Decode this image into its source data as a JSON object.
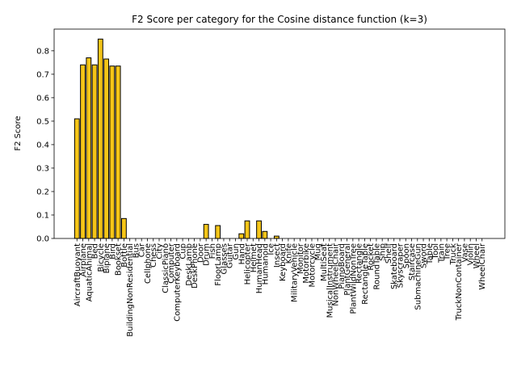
{
  "chart_data": {
    "type": "bar",
    "title": "F2 Score per category for the Cosine distance function (k=3)",
    "ylabel": "F2 Score",
    "color": "#f5c518",
    "edgecolor": "#000000",
    "categories": [
      "AircraftBuoyant",
      "Airplane",
      "AquaticAnimal",
      "Bed",
      "Bicycle",
      "Biplane",
      "Bird",
      "Bookset",
      "Bottle",
      "BuildingNonResidential",
      "Bus",
      "Car",
      "Cellphone",
      "Chess",
      "City",
      "ClassicPiano",
      "Computer",
      "ComputerKeyboard",
      "Cup",
      "DeskLamp",
      "DeskPhone",
      "Door",
      "Drum",
      "Fish",
      "FloorLamp",
      "Glasses",
      "Guitar",
      "Gun",
      "Hand",
      "Helicopter",
      "Helmet",
      "HumanHead",
      "Humanoid",
      "Ice",
      "Insect",
      "Keyboard",
      "Knife",
      "MilitaryVehicle",
      "Monitor",
      "Motorbike",
      "Motorcycle",
      "Mug",
      "MultiSeat",
      "MusicalInstrument",
      "NonWheelChair",
      "PianoBoard",
      "PlantGeneral",
      "PlantWildNonTree",
      "Rectangle",
      "RectangleTable",
      "Rocket",
      "RoundTable",
      "Ship",
      "Shelf",
      "Skateboard",
      "Skyscraper",
      "Spoon",
      "Staircase",
      "SubmachineGun",
      "Sword",
      "Table",
      "Tool",
      "Train",
      "Tree",
      "Truck",
      "TruckNonContainer",
      "Vase",
      "Violin",
      "Wheel",
      "WheelChair"
    ],
    "values": [
      0.51,
      0.74,
      0.77,
      0.74,
      0.85,
      0.765,
      0.735,
      0.735,
      0.085,
      0,
      0,
      0,
      0,
      0,
      0,
      0,
      0,
      0,
      0,
      0,
      0,
      0,
      0.06,
      0,
      0.055,
      0,
      0,
      0,
      0.02,
      0.075,
      0,
      0.075,
      0.03,
      0,
      0.01,
      0,
      0,
      0,
      0,
      0,
      0,
      0,
      0,
      0,
      0,
      0,
      0,
      0,
      0,
      0,
      0,
      0,
      0,
      0,
      0,
      0,
      0,
      0,
      0,
      0,
      0,
      0,
      0,
      0,
      0,
      0,
      0,
      0,
      0,
      0
    ],
    "ylim": [
      0,
      0.8925
    ],
    "yticks": [
      {
        "value": 0,
        "label": "0.0"
      },
      0.1,
      0.2,
      0.3,
      0.4,
      0.5,
      0.6,
      0.7,
      0.8
    ]
  }
}
